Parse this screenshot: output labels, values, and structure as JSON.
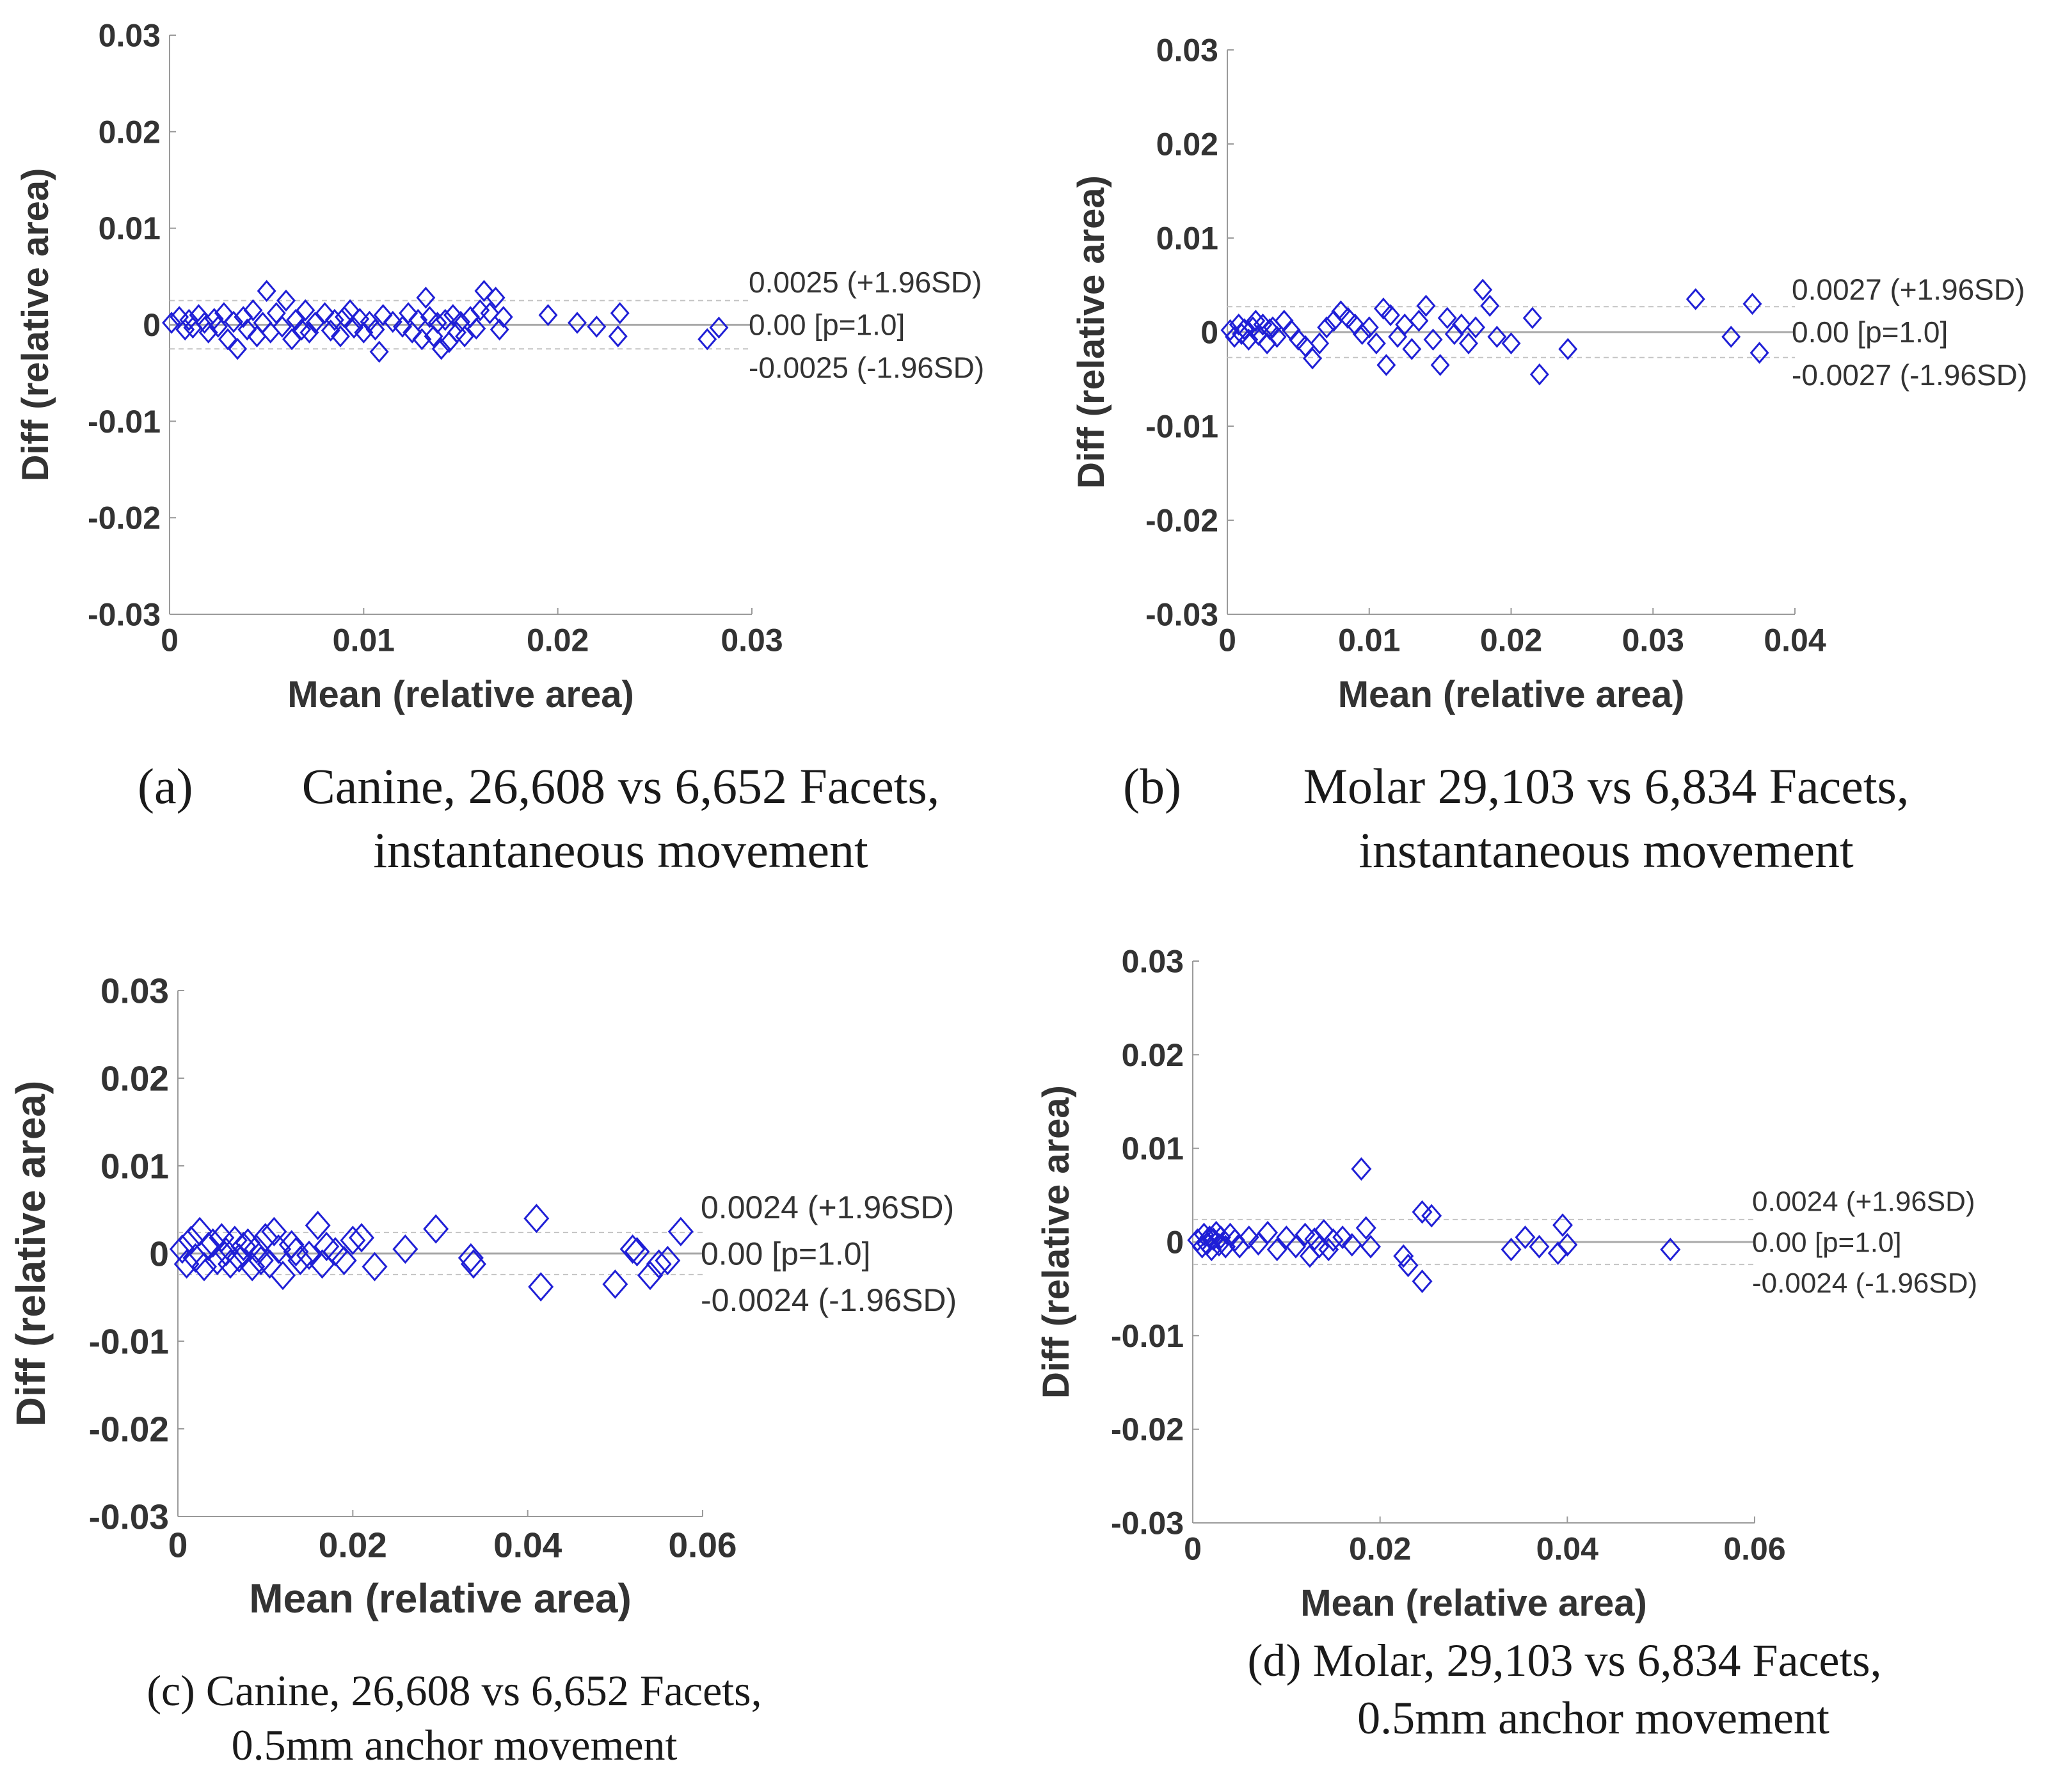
{
  "colors": {
    "marker": "#1f1fd6",
    "axis": "#9a9a9a",
    "mean_line": "#a8a8a8",
    "sd_line": "#c4c4c4",
    "text": "#333333"
  },
  "chart_data": [
    {
      "panel": "a",
      "type": "scatter",
      "marker": "diamond",
      "caption_label": "(a)",
      "caption_lines": [
        "Canine, 26,608 vs 6,652 Facets,",
        "instantaneous movement"
      ],
      "xlabel": "Mean (relative area)",
      "ylabel": "Diff (relative area)",
      "xlim": [
        0,
        0.03
      ],
      "ylim": [
        -0.03,
        0.03
      ],
      "xticks": [
        0,
        0.01,
        0.02,
        0.03
      ],
      "xtick_labels": [
        "0",
        "0.01",
        "0.02",
        "0.03"
      ],
      "yticks": [
        -0.03,
        -0.02,
        -0.01,
        0,
        0.01,
        0.02,
        0.03
      ],
      "ytick_labels": [
        "-0.03",
        "-0.02",
        "-0.01",
        "0",
        "0.01",
        "0.02",
        "0.03"
      ],
      "mean_diff": 0.0,
      "upper_loa": 0.0025,
      "lower_loa": -0.0025,
      "annotations": {
        "upper": "0.0025 (+1.96SD)",
        "mean": "0.00 [p=1.0]",
        "lower": "-0.0025 (-1.96SD)"
      },
      "points": [
        [
          0.0001,
          0.0002
        ],
        [
          0.0005,
          0.0008
        ],
        [
          0.0008,
          -0.0005
        ],
        [
          0.001,
          0.0005
        ],
        [
          0.0012,
          -0.0003
        ],
        [
          0.0015,
          0.001
        ],
        [
          0.0018,
          0.0002
        ],
        [
          0.002,
          -0.0008
        ],
        [
          0.0023,
          0.0006
        ],
        [
          0.0025,
          -0.0002
        ],
        [
          0.0028,
          0.0012
        ],
        [
          0.003,
          -0.0015
        ],
        [
          0.0033,
          0.0003
        ],
        [
          0.0035,
          -0.0025
        ],
        [
          0.0038,
          0.0008
        ],
        [
          0.004,
          -0.0005
        ],
        [
          0.0043,
          0.0015
        ],
        [
          0.0045,
          -0.0012
        ],
        [
          0.0048,
          0.0002
        ],
        [
          0.005,
          0.0035
        ],
        [
          0.0052,
          -0.0008
        ],
        [
          0.0055,
          0.0012
        ],
        [
          0.0058,
          -0.0002
        ],
        [
          0.006,
          0.0025
        ],
        [
          0.0063,
          -0.0015
        ],
        [
          0.0065,
          0.0005
        ],
        [
          0.0068,
          -0.0005
        ],
        [
          0.007,
          0.0015
        ],
        [
          0.0072,
          -0.0008
        ],
        [
          0.0075,
          0.0002
        ],
        [
          0.008,
          0.0012
        ],
        [
          0.0083,
          -0.0006
        ],
        [
          0.0085,
          0.0005
        ],
        [
          0.0088,
          -0.0012
        ],
        [
          0.009,
          0.0008
        ],
        [
          0.0093,
          0.0015
        ],
        [
          0.0095,
          -0.0003
        ],
        [
          0.0098,
          0.0006
        ],
        [
          0.01,
          -0.0008
        ],
        [
          0.0103,
          0.0003
        ],
        [
          0.0106,
          -0.0005
        ],
        [
          0.011,
          0.001
        ],
        [
          0.0108,
          -0.0028
        ],
        [
          0.0115,
          0.0003
        ],
        [
          0.012,
          -0.0002
        ],
        [
          0.0123,
          0.0012
        ],
        [
          0.0125,
          -0.0008
        ],
        [
          0.0128,
          0.0005
        ],
        [
          0.013,
          -0.0015
        ],
        [
          0.0132,
          0.0028
        ],
        [
          0.0134,
          0.0008
        ],
        [
          0.0136,
          -0.0012
        ],
        [
          0.0138,
          0.0002
        ],
        [
          0.014,
          -0.0025
        ],
        [
          0.0142,
          0.0005
        ],
        [
          0.0144,
          -0.0018
        ],
        [
          0.0146,
          0.001
        ],
        [
          0.0148,
          -0.0008
        ],
        [
          0.015,
          0.0003
        ],
        [
          0.0152,
          -0.0012
        ],
        [
          0.0155,
          0.0008
        ],
        [
          0.0158,
          -0.0004
        ],
        [
          0.016,
          0.0015
        ],
        [
          0.0162,
          0.0035
        ],
        [
          0.0165,
          0.0012
        ],
        [
          0.0168,
          0.0028
        ],
        [
          0.017,
          -0.0005
        ],
        [
          0.0172,
          0.0008
        ],
        [
          0.0195,
          0.001
        ],
        [
          0.021,
          0.0002
        ],
        [
          0.022,
          -0.0002
        ],
        [
          0.0232,
          0.0012
        ],
        [
          0.0231,
          -0.0012
        ],
        [
          0.0277,
          -0.0015
        ],
        [
          0.0283,
          -0.0003
        ]
      ]
    },
    {
      "panel": "b",
      "type": "scatter",
      "marker": "diamond",
      "caption_label": "(b)",
      "caption_lines": [
        "Molar 29,103 vs 6,834 Facets,",
        "instantaneous movement"
      ],
      "xlabel": "Mean (relative area)",
      "ylabel": "Diff (relative area)",
      "xlim": [
        0,
        0.04
      ],
      "ylim": [
        -0.03,
        0.03
      ],
      "xticks": [
        0,
        0.01,
        0.02,
        0.03,
        0.04
      ],
      "xtick_labels": [
        "0",
        "0.01",
        "0.02",
        "0.03",
        "0.04"
      ],
      "yticks": [
        -0.03,
        -0.02,
        -0.01,
        0,
        0.01,
        0.02,
        0.03
      ],
      "ytick_labels": [
        "-0.03",
        "-0.02",
        "-0.01",
        "0",
        "0.01",
        "0.02",
        "0.03"
      ],
      "mean_diff": 0.0,
      "upper_loa": 0.0027,
      "lower_loa": -0.0027,
      "annotations": {
        "upper": "0.0027 (+1.96SD)",
        "mean": "0.00 [p=1.0]",
        "lower": "-0.0027 (-1.96SD)"
      },
      "points": [
        [
          0.0002,
          0.0002
        ],
        [
          0.0005,
          -0.0005
        ],
        [
          0.0008,
          0.0008
        ],
        [
          0.001,
          -0.0002
        ],
        [
          0.0012,
          0.0003
        ],
        [
          0.0015,
          -0.0008
        ],
        [
          0.0018,
          0.0005
        ],
        [
          0.002,
          0.0012
        ],
        [
          0.0022,
          -0.0003
        ],
        [
          0.0025,
          0.0008
        ],
        [
          0.0028,
          -0.0012
        ],
        [
          0.003,
          0.0003
        ],
        [
          0.0032,
          0.0005
        ],
        [
          0.0035,
          -0.0005
        ],
        [
          0.004,
          0.0012
        ],
        [
          0.0045,
          0.0002
        ],
        [
          0.005,
          -0.0008
        ],
        [
          0.0055,
          -0.0015
        ],
        [
          0.006,
          -0.0028
        ],
        [
          0.0065,
          -0.0012
        ],
        [
          0.007,
          0.0005
        ],
        [
          0.0075,
          0.0012
        ],
        [
          0.008,
          0.0022
        ],
        [
          0.0085,
          0.0015
        ],
        [
          0.009,
          0.0008
        ],
        [
          0.0095,
          -0.0002
        ],
        [
          0.01,
          0.0005
        ],
        [
          0.0105,
          -0.0012
        ],
        [
          0.011,
          0.0025
        ],
        [
          0.0112,
          -0.0035
        ],
        [
          0.0115,
          0.0018
        ],
        [
          0.012,
          -0.0005
        ],
        [
          0.0125,
          0.0008
        ],
        [
          0.013,
          -0.0018
        ],
        [
          0.0135,
          0.0012
        ],
        [
          0.014,
          0.0028
        ],
        [
          0.0145,
          -0.0008
        ],
        [
          0.015,
          -0.0035
        ],
        [
          0.0155,
          0.0015
        ],
        [
          0.016,
          -0.0002
        ],
        [
          0.0165,
          0.0008
        ],
        [
          0.017,
          -0.0012
        ],
        [
          0.0175,
          0.0005
        ],
        [
          0.018,
          0.0045
        ],
        [
          0.0185,
          0.0028
        ],
        [
          0.019,
          -0.0005
        ],
        [
          0.02,
          -0.0012
        ],
        [
          0.0215,
          0.0015
        ],
        [
          0.022,
          -0.0045
        ],
        [
          0.024,
          -0.0018
        ],
        [
          0.033,
          0.0035
        ],
        [
          0.0355,
          -0.0005
        ],
        [
          0.037,
          0.003
        ],
        [
          0.0375,
          -0.0022
        ]
      ]
    },
    {
      "panel": "c",
      "type": "scatter",
      "marker": "diamond",
      "caption_label": "(c)",
      "caption_lines": [
        "Canine, 26,608 vs 6,652 Facets,",
        "0.5mm anchor movement"
      ],
      "xlabel": "Mean (relative area)",
      "ylabel": "Diff (relative area)",
      "xlim": [
        0,
        0.06
      ],
      "ylim": [
        -0.03,
        0.03
      ],
      "xticks": [
        0,
        0.02,
        0.04,
        0.06
      ],
      "xtick_labels": [
        "0",
        "0.02",
        "0.04",
        "0.06"
      ],
      "yticks": [
        -0.03,
        -0.02,
        -0.01,
        0,
        0.01,
        0.02,
        0.03
      ],
      "ytick_labels": [
        "-0.03",
        "-0.02",
        "-0.01",
        "0",
        "0.01",
        "0.02",
        "0.03"
      ],
      "mean_diff": 0.0,
      "upper_loa": 0.0024,
      "lower_loa": -0.0024,
      "annotations": {
        "upper": "0.0024 (+1.96SD)",
        "mean": "0.00 [p=1.0]",
        "lower": "-0.0024 (-1.96SD)"
      },
      "points": [
        [
          0.0005,
          0.0005
        ],
        [
          0.001,
          -0.0012
        ],
        [
          0.0015,
          0.0015
        ],
        [
          0.002,
          -0.0005
        ],
        [
          0.0025,
          0.0025
        ],
        [
          0.003,
          -0.0015
        ],
        [
          0.0035,
          0.0008
        ],
        [
          0.004,
          0.0012
        ],
        [
          0.0045,
          -0.0008
        ],
        [
          0.005,
          0.0018
        ],
        [
          0.0055,
          0.0002
        ],
        [
          0.006,
          -0.0012
        ],
        [
          0.0065,
          0.0015
        ],
        [
          0.007,
          -0.0005
        ],
        [
          0.0075,
          0.0008
        ],
        [
          0.008,
          0.0012
        ],
        [
          0.0085,
          -0.0015
        ],
        [
          0.009,
          0.0005
        ],
        [
          0.0095,
          -0.0008
        ],
        [
          0.01,
          0.0018
        ],
        [
          0.0105,
          -0.0012
        ],
        [
          0.011,
          0.0025
        ],
        [
          0.0115,
          0.0005
        ],
        [
          0.012,
          -0.0025
        ],
        [
          0.013,
          0.001
        ],
        [
          0.0135,
          0.0002
        ],
        [
          0.014,
          -0.0008
        ],
        [
          0.015,
          -0.0002
        ],
        [
          0.016,
          0.0032
        ],
        [
          0.0165,
          -0.0012
        ],
        [
          0.017,
          0.0008
        ],
        [
          0.018,
          0.0002
        ],
        [
          0.019,
          -0.0008
        ],
        [
          0.02,
          0.0015
        ],
        [
          0.021,
          0.0018
        ],
        [
          0.0225,
          -0.0015
        ],
        [
          0.026,
          0.0005
        ],
        [
          0.0295,
          0.0028
        ],
        [
          0.0335,
          -0.0005
        ],
        [
          0.0338,
          -0.0012
        ],
        [
          0.041,
          0.004
        ],
        [
          0.0415,
          -0.0038
        ],
        [
          0.05,
          -0.0035
        ],
        [
          0.052,
          0.0005
        ],
        [
          0.0525,
          0.0002
        ],
        [
          0.054,
          -0.0025
        ],
        [
          0.055,
          -0.0012
        ],
        [
          0.056,
          -0.0008
        ],
        [
          0.0575,
          0.0025
        ]
      ]
    },
    {
      "panel": "d",
      "type": "scatter",
      "marker": "diamond",
      "caption_label": "(d)",
      "caption_lines": [
        "(d) Molar, 29,103 vs 6,834 Facets,",
        "0.5mm anchor movement"
      ],
      "xlabel": "Mean (relative area)",
      "ylabel": "Diff (relative area)",
      "xlim": [
        0,
        0.06
      ],
      "ylim": [
        -0.03,
        0.03
      ],
      "xticks": [
        0,
        0.02,
        0.04,
        0.06
      ],
      "xtick_labels": [
        "0",
        "0.02",
        "0.04",
        "0.06"
      ],
      "yticks": [
        -0.03,
        -0.02,
        -0.01,
        0,
        0.01,
        0.02,
        0.03
      ],
      "ytick_labels": [
        "-0.03",
        "-0.02",
        "-0.01",
        "0",
        "0.01",
        "0.02",
        "0.03"
      ],
      "mean_diff": 0.0,
      "upper_loa": 0.0024,
      "lower_loa": -0.0024,
      "annotations": {
        "upper": "0.0024 (+1.96SD)",
        "mean": "0.00 [p=1.0]",
        "lower": "-0.0024 (-1.96SD)"
      },
      "points": [
        [
          0.0005,
          0.0002
        ],
        [
          0.001,
          -0.0005
        ],
        [
          0.0012,
          0.0008
        ],
        [
          0.0015,
          -0.0002
        ],
        [
          0.0018,
          0.0005
        ],
        [
          0.002,
          -0.0008
        ],
        [
          0.0022,
          0.0003
        ],
        [
          0.0025,
          0.001
        ],
        [
          0.0028,
          -0.0003
        ],
        [
          0.003,
          0.0005
        ],
        [
          0.0035,
          -0.0005
        ],
        [
          0.004,
          0.0008
        ],
        [
          0.0045,
          0.0002
        ],
        [
          0.005,
          -0.0005
        ],
        [
          0.006,
          0.0005
        ],
        [
          0.007,
          -0.0002
        ],
        [
          0.008,
          0.001
        ],
        [
          0.009,
          -0.0008
        ],
        [
          0.01,
          0.0005
        ],
        [
          0.011,
          -0.0005
        ],
        [
          0.012,
          0.0008
        ],
        [
          0.0125,
          -0.0015
        ],
        [
          0.013,
          0.0003
        ],
        [
          0.0135,
          -0.0005
        ],
        [
          0.014,
          0.0012
        ],
        [
          0.0145,
          -0.0008
        ],
        [
          0.015,
          0.0002
        ],
        [
          0.016,
          0.0005
        ],
        [
          0.017,
          -0.0003
        ],
        [
          0.018,
          0.0078
        ],
        [
          0.0185,
          0.0015
        ],
        [
          0.019,
          -0.0005
        ],
        [
          0.0225,
          -0.0015
        ],
        [
          0.023,
          -0.0025
        ],
        [
          0.0245,
          -0.0042
        ],
        [
          0.0245,
          0.0032
        ],
        [
          0.0255,
          0.0028
        ],
        [
          0.034,
          -0.0008
        ],
        [
          0.0355,
          0.0005
        ],
        [
          0.037,
          -0.0005
        ],
        [
          0.039,
          -0.0012
        ],
        [
          0.0395,
          0.0018
        ],
        [
          0.04,
          -0.0003
        ],
        [
          0.051,
          -0.0008
        ]
      ]
    }
  ]
}
